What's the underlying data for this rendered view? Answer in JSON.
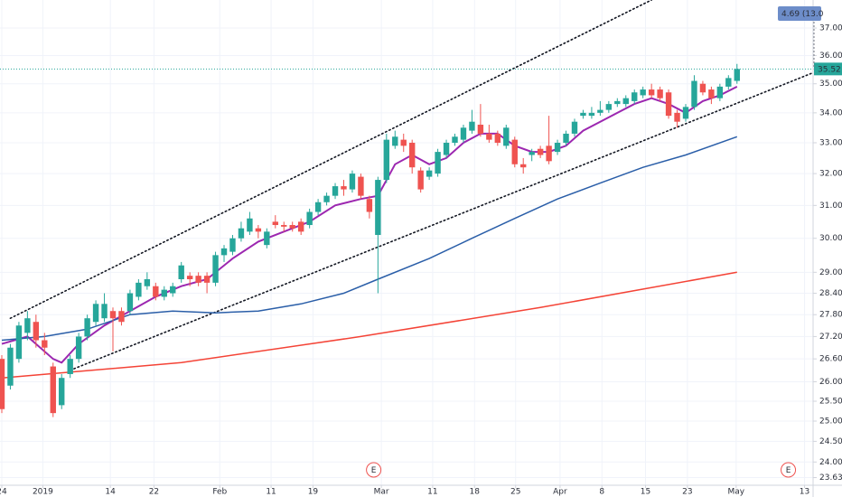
{
  "chart_data": {
    "type": "candlestick",
    "log_scale": true,
    "grid": true,
    "up_color": "#26a69a",
    "down_color": "#ef5350",
    "open": [
      26.6,
      25.9,
      26.6,
      27.3,
      27.6,
      27.1,
      26.4,
      25.4,
      26.2,
      26.6,
      27.2,
      27.6,
      27.7,
      27.9,
      27.9,
      27.9,
      28.3,
      28.6,
      28.6,
      28.3,
      28.4,
      28.8,
      28.9,
      28.9,
      28.9,
      28.7,
      29.5,
      29.6,
      30.0,
      30.2,
      30.3,
      29.8,
      30.5,
      30.4,
      30.4,
      30.5,
      30.4,
      30.8,
      31.1,
      31.3,
      31.6,
      31.5,
      31.9,
      31.2,
      30.1,
      31.8,
      32.9,
      33.1,
      33.0,
      32.1,
      31.9,
      32.0,
      32.6,
      33.0,
      33.1,
      33.4,
      33.6,
      33.3,
      33.3,
      32.9,
      33.1,
      32.3,
      32.6,
      32.8,
      32.9,
      32.7,
      33.0,
      33.3,
      33.9,
      33.9,
      34.0,
      34.1,
      34.3,
      34.3,
      34.4,
      34.6,
      34.8,
      34.8,
      34.7,
      34.0,
      33.8,
      34.2,
      35.0,
      34.8,
      34.5,
      34.9,
      35.1
    ],
    "high": [
      26.7,
      27.0,
      27.6,
      27.9,
      27.8,
      27.3,
      26.5,
      26.2,
      26.7,
      27.3,
      27.8,
      28.2,
      28.4,
      28.0,
      28.0,
      28.5,
      28.8,
      29.0,
      28.7,
      28.6,
      28.7,
      29.3,
      29.0,
      29.0,
      29.0,
      29.6,
      29.8,
      30.1,
      30.5,
      30.8,
      30.4,
      30.3,
      30.7,
      30.5,
      30.5,
      30.6,
      30.9,
      31.2,
      31.4,
      31.7,
      31.8,
      32.1,
      32.0,
      31.3,
      31.9,
      33.3,
      33.4,
      33.3,
      33.1,
      32.2,
      32.2,
      32.8,
      33.1,
      33.3,
      33.6,
      34.1,
      34.3,
      33.6,
      33.4,
      33.6,
      33.2,
      32.5,
      32.8,
      32.9,
      33.9,
      33.1,
      33.4,
      33.8,
      34.1,
      34.2,
      34.4,
      34.4,
      34.5,
      34.6,
      34.8,
      34.9,
      35.0,
      34.9,
      34.8,
      34.1,
      34.3,
      35.3,
      35.1,
      34.9,
      35.0,
      35.3,
      35.7
    ],
    "low": [
      25.2,
      25.8,
      26.5,
      27.1,
      26.9,
      26.7,
      25.1,
      25.3,
      26.1,
      26.5,
      27.1,
      27.5,
      27.6,
      26.8,
      27.5,
      27.8,
      28.2,
      28.5,
      28.2,
      28.2,
      28.3,
      28.7,
      28.6,
      28.6,
      28.4,
      28.6,
      29.3,
      29.5,
      29.9,
      30.1,
      30.0,
      29.7,
      30.3,
      30.2,
      30.2,
      30.1,
      30.3,
      30.7,
      31.0,
      31.2,
      31.3,
      31.4,
      31.2,
      30.6,
      28.4,
      31.7,
      32.8,
      32.7,
      32.0,
      31.4,
      31.8,
      31.9,
      32.5,
      32.9,
      33.0,
      33.3,
      33.2,
      33.0,
      32.9,
      32.8,
      32.2,
      32.0,
      32.4,
      32.5,
      32.3,
      32.6,
      32.9,
      33.2,
      33.8,
      33.8,
      33.9,
      34.0,
      34.2,
      34.2,
      34.3,
      34.5,
      34.5,
      34.4,
      33.8,
      33.5,
      33.7,
      34.1,
      34.6,
      34.3,
      34.4,
      34.8,
      35.0
    ],
    "close": [
      25.3,
      26.9,
      27.5,
      27.7,
      27.1,
      26.9,
      25.2,
      26.1,
      26.6,
      27.2,
      27.7,
      28.1,
      28.1,
      27.7,
      27.6,
      28.4,
      28.7,
      28.8,
      28.3,
      28.5,
      28.6,
      29.2,
      28.8,
      28.7,
      28.7,
      29.5,
      29.7,
      30.0,
      30.3,
      30.6,
      30.2,
      30.2,
      30.4,
      30.35,
      30.3,
      30.2,
      30.8,
      31.1,
      31.3,
      31.6,
      31.5,
      32.0,
      31.3,
      30.8,
      31.8,
      33.1,
      33.2,
      32.9,
      32.2,
      31.5,
      32.1,
      32.7,
      33.0,
      33.2,
      33.5,
      33.7,
      33.3,
      33.1,
      33.0,
      33.5,
      32.3,
      32.2,
      32.7,
      32.6,
      32.4,
      33.0,
      33.3,
      33.7,
      34.0,
      34.0,
      34.1,
      34.3,
      34.4,
      34.5,
      34.7,
      34.8,
      34.6,
      34.5,
      33.9,
      33.7,
      34.2,
      35.1,
      34.7,
      34.5,
      34.9,
      35.2,
      35.52
    ],
    "overlays": [
      {
        "color": "#9c27b0",
        "x": [
          0,
          3,
          6,
          7,
          9,
          12,
          15,
          18,
          21,
          24,
          27,
          30,
          33,
          36,
          39,
          42,
          44,
          46,
          48,
          50,
          52,
          54,
          56,
          58,
          60,
          62,
          64,
          66,
          68,
          70,
          72,
          74,
          76,
          78,
          80,
          82,
          84,
          86
        ],
        "values": [
          27.0,
          27.2,
          26.6,
          26.5,
          27.0,
          27.5,
          27.9,
          28.3,
          28.6,
          28.8,
          29.4,
          29.9,
          30.2,
          30.5,
          31.0,
          31.2,
          31.3,
          32.3,
          32.6,
          32.3,
          32.5,
          33.0,
          33.3,
          33.3,
          32.9,
          32.7,
          32.7,
          32.9,
          33.4,
          33.7,
          34.0,
          34.3,
          34.5,
          34.3,
          34.0,
          34.4,
          34.6,
          34.9
        ]
      },
      {
        "color": "#2a5ea8",
        "x": [
          0,
          5,
          10,
          15,
          20,
          25,
          30,
          35,
          40,
          44,
          50,
          55,
          60,
          65,
          70,
          75,
          80,
          86
        ],
        "values": [
          27.1,
          27.2,
          27.4,
          27.8,
          27.9,
          27.85,
          27.9,
          28.1,
          28.4,
          28.8,
          29.4,
          30.0,
          30.6,
          31.2,
          31.7,
          32.2,
          32.6,
          33.2
        ]
      },
      {
        "color": "#f44336",
        "x": [
          0,
          21,
          42,
          63,
          86
        ],
        "values": [
          26.1,
          26.5,
          27.2,
          28.0,
          29.0
        ]
      }
    ],
    "trend_lines": [
      {
        "x": [
          1,
          76
        ],
        "values": [
          27.7,
          38.05
        ]
      },
      {
        "x": [
          8,
          95
        ],
        "values": [
          26.3,
          35.4
        ]
      }
    ],
    "price_line": 35.52,
    "top_label": "4.69 (13.0",
    "events": [
      {
        "x": 43.5,
        "label": "E"
      },
      {
        "x": 92,
        "label": "E"
      }
    ],
    "xlim": [
      -0.21,
      94.9
    ],
    "xticks": [
      {
        "value": 0,
        "label": "24"
      },
      {
        "value": 4.8,
        "label": "2019"
      },
      {
        "value": 12.7,
        "label": "14"
      },
      {
        "value": 17.8,
        "label": "22"
      },
      {
        "value": 25.5,
        "label": "Feb"
      },
      {
        "value": 31.5,
        "label": "11"
      },
      {
        "value": 36.4,
        "label": "19"
      },
      {
        "value": 44.4,
        "label": "Mar"
      },
      {
        "value": 50.4,
        "label": "11"
      },
      {
        "value": 55.3,
        "label": "18"
      },
      {
        "value": 60.1,
        "label": "25"
      },
      {
        "value": 65.3,
        "label": "Apr"
      },
      {
        "value": 70.2,
        "label": "8"
      },
      {
        "value": 75.3,
        "label": "15"
      },
      {
        "value": 80.2,
        "label": "23"
      },
      {
        "value": 85.9,
        "label": "May"
      },
      {
        "value": 93.9,
        "label": "13"
      }
    ],
    "ylim": [
      23.45,
      38.05
    ],
    "yticks": [
      {
        "value": 37,
        "label": "37.00"
      },
      {
        "value": 36,
        "label": "36.00"
      },
      {
        "value": 35,
        "label": "35.00"
      },
      {
        "value": 34,
        "label": "34.00"
      },
      {
        "value": 33,
        "label": "33.00"
      },
      {
        "value": 32,
        "label": "32.00"
      },
      {
        "value": 31,
        "label": "31.00"
      },
      {
        "value": 30,
        "label": "30.00"
      },
      {
        "value": 29,
        "label": "29.00"
      },
      {
        "value": 28.4,
        "label": "28.40"
      },
      {
        "value": 27.8,
        "label": "27.80"
      },
      {
        "value": 27.2,
        "label": "27.20"
      },
      {
        "value": 26.6,
        "label": "26.60"
      },
      {
        "value": 26,
        "label": "26.00"
      },
      {
        "value": 25.5,
        "label": "25.50"
      },
      {
        "value": 25,
        "label": "25.00"
      },
      {
        "value": 24.5,
        "label": "24.50"
      },
      {
        "value": 24,
        "label": "24.00"
      },
      {
        "value": 23.63,
        "label": "23.63"
      }
    ]
  }
}
